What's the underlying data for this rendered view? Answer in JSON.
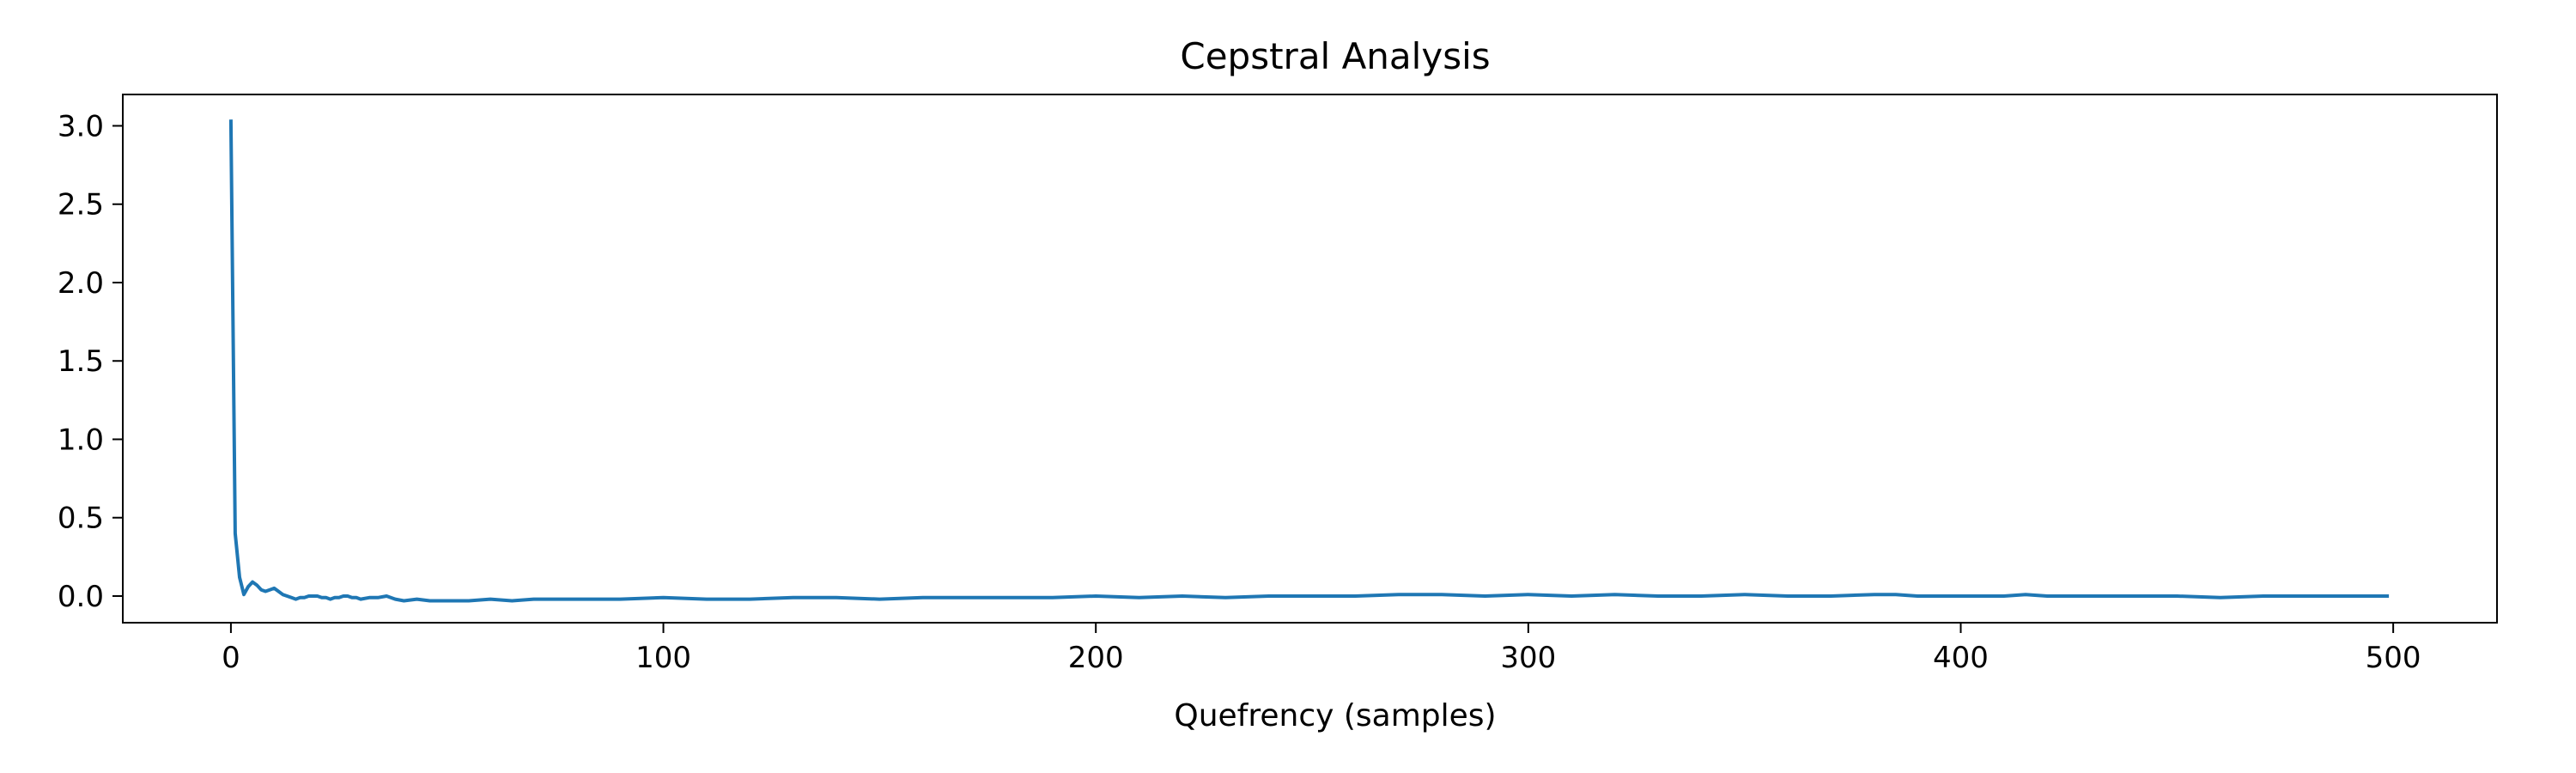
{
  "chart_data": {
    "type": "line",
    "title": "Cepstral Analysis",
    "xlabel": "Quefrency (samples)",
    "ylabel": "",
    "xlim": [
      -25,
      524
    ],
    "ylim": [
      -0.17,
      3.2
    ],
    "xticks": [
      0,
      100,
      200,
      300,
      400,
      500
    ],
    "yticks": [
      0.0,
      0.5,
      1.0,
      1.5,
      2.0,
      2.5,
      3.0
    ],
    "xtick_labels": [
      "0",
      "100",
      "200",
      "300",
      "400",
      "500"
    ],
    "ytick_labels": [
      "0.0",
      "0.5",
      "1.0",
      "1.5",
      "2.0",
      "2.5",
      "3.0"
    ],
    "grid": false,
    "legend": "none",
    "series": [
      {
        "color": "#1f77b4",
        "x": [
          0,
          1,
          2,
          3,
          4,
          5,
          6,
          7,
          8,
          9,
          10,
          11,
          12,
          13,
          14,
          15,
          16,
          17,
          18,
          19,
          20,
          21,
          22,
          23,
          24,
          25,
          26,
          27,
          28,
          29,
          30,
          32,
          34,
          36,
          38,
          40,
          43,
          46,
          50,
          55,
          60,
          65,
          70,
          80,
          90,
          100,
          110,
          120,
          130,
          140,
          150,
          160,
          170,
          180,
          190,
          200,
          210,
          220,
          230,
          240,
          250,
          260,
          270,
          280,
          290,
          300,
          310,
          320,
          330,
          340,
          350,
          360,
          370,
          380,
          385,
          390,
          400,
          410,
          415,
          420,
          430,
          440,
          450,
          460,
          470,
          480,
          490,
          499
        ],
        "y": [
          3.04,
          0.4,
          0.12,
          0.01,
          0.06,
          0.09,
          0.07,
          0.04,
          0.03,
          0.04,
          0.05,
          0.03,
          0.01,
          0.0,
          -0.01,
          -0.02,
          -0.01,
          -0.01,
          0.0,
          0.0,
          0.0,
          -0.01,
          -0.01,
          -0.02,
          -0.01,
          -0.01,
          0.0,
          0.0,
          -0.01,
          -0.01,
          -0.02,
          -0.01,
          -0.01,
          0.0,
          -0.02,
          -0.03,
          -0.02,
          -0.03,
          -0.03,
          -0.03,
          -0.02,
          -0.03,
          -0.02,
          -0.02,
          -0.02,
          -0.01,
          -0.02,
          -0.02,
          -0.01,
          -0.01,
          -0.02,
          -0.01,
          -0.01,
          -0.01,
          -0.01,
          0.0,
          -0.01,
          0.0,
          -0.01,
          0.0,
          0.0,
          0.0,
          0.01,
          0.01,
          0.0,
          0.01,
          0.0,
          0.01,
          0.0,
          0.0,
          0.01,
          0.0,
          0.0,
          0.01,
          0.01,
          0.0,
          0.0,
          0.0,
          0.01,
          0.0,
          0.0,
          0.0,
          0.0,
          -0.01,
          0.0,
          0.0,
          0.0,
          0.0
        ]
      }
    ]
  }
}
